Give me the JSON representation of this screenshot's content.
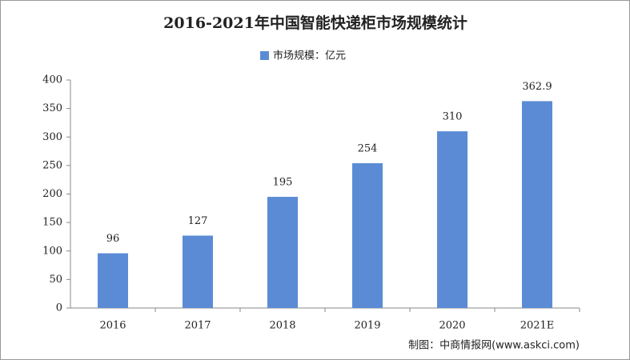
{
  "chart_data": {
    "type": "bar",
    "title": "2016-2021年中国智能快递柜市场规模统计",
    "legend_label": "市场规模：亿元",
    "categories": [
      "2016",
      "2017",
      "2018",
      "2019",
      "2020",
      "2021E"
    ],
    "values": [
      96,
      127,
      195,
      254,
      310,
      362.9
    ],
    "color": "#5b8bd5",
    "ylim": [
      0,
      400
    ],
    "yticks": [
      0,
      50,
      100,
      150,
      200,
      250,
      300,
      350,
      400
    ],
    "grid": false,
    "source": "制图：中商情报网(www.askci.com)"
  }
}
